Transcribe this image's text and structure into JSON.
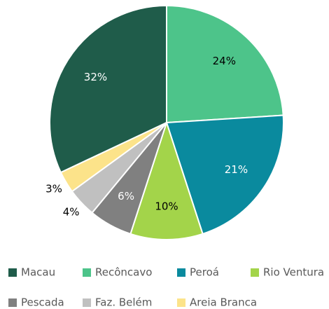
{
  "chart_data": {
    "type": "pie",
    "categories": [
      "Macau",
      "Recôncavo",
      "Peroá",
      "Rio Ventura",
      "Pescada",
      "Faz. Belém",
      "Areia Branca"
    ],
    "values": [
      32,
      24,
      21,
      10,
      6,
      4,
      3
    ],
    "value_labels": [
      "32%",
      "24%",
      "21%",
      "10%",
      "6%",
      "4%",
      "3%"
    ],
    "colors": [
      "#1f5c4a",
      "#4dc48a",
      "#0a8a9e",
      "#a3d44a",
      "#808080",
      "#c0c0c0",
      "#fce38a"
    ],
    "legend": "bottom"
  }
}
